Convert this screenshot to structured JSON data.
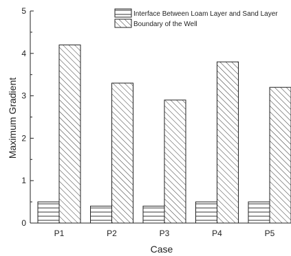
{
  "chart_data": {
    "type": "bar",
    "xlabel": "Case",
    "ylabel": "Maximum Gradient",
    "ylim": [
      0,
      5
    ],
    "yticks": [
      0,
      1,
      2,
      3,
      4,
      5
    ],
    "categories": [
      "P1",
      "P2",
      "P3",
      "P4",
      "P5"
    ],
    "grid": false,
    "legend_position": "top-right",
    "series": [
      {
        "name": "Interface Between Loam Layer and Sand Layer",
        "pattern": "horizontal-lines",
        "values": [
          0.5,
          0.4,
          0.4,
          0.5,
          0.5
        ]
      },
      {
        "name": "Boundary of the Well",
        "pattern": "diagonal-lines",
        "values": [
          4.2,
          3.3,
          2.9,
          3.8,
          3.2
        ]
      }
    ]
  }
}
